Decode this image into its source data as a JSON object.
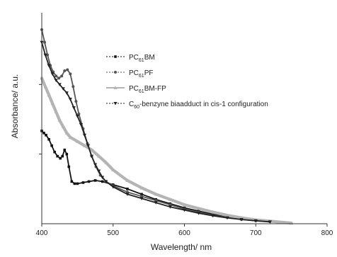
{
  "chart_data": {
    "type": "line",
    "title": "",
    "xlabel": "Wavelength/ nm",
    "ylabel": "Absorbance/ a.u.",
    "xlim": [
      400,
      800
    ],
    "ylim": [
      0,
      1
    ],
    "x_ticks": [
      400,
      500,
      600,
      700,
      800
    ],
    "y_ticks": [
      0.33,
      0.66
    ],
    "y_tick_labels_shown": false,
    "grid": false,
    "legend_position": "top-right",
    "series": [
      {
        "name_main": "PC",
        "name_sub": "61",
        "name_rest": "BM",
        "color": "#111111",
        "dash": "2,2",
        "marker": "square",
        "points": [
          [
            400,
            0.44
          ],
          [
            403,
            0.43
          ],
          [
            406,
            0.42
          ],
          [
            410,
            0.4
          ],
          [
            414,
            0.37
          ],
          [
            418,
            0.34
          ],
          [
            422,
            0.32
          ],
          [
            426,
            0.31
          ],
          [
            429,
            0.32
          ],
          [
            432,
            0.35
          ],
          [
            435,
            0.33
          ],
          [
            438,
            0.27
          ],
          [
            442,
            0.2
          ],
          [
            446,
            0.19
          ],
          [
            450,
            0.19
          ],
          [
            458,
            0.195
          ],
          [
            466,
            0.2
          ],
          [
            475,
            0.205
          ],
          [
            485,
            0.2
          ],
          [
            500,
            0.185
          ],
          [
            520,
            0.165
          ],
          [
            540,
            0.14
          ],
          [
            560,
            0.115
          ],
          [
            580,
            0.095
          ],
          [
            600,
            0.075
          ],
          [
            620,
            0.06
          ],
          [
            640,
            0.045
          ],
          [
            660,
            0.032
          ],
          [
            680,
            0.022
          ],
          [
            700,
            0.015
          ],
          [
            720,
            0.01
          ]
        ]
      },
      {
        "name_main": "PC",
        "name_sub": "61",
        "name_rest": "PF",
        "color": "#555555",
        "dash": "2,2",
        "marker": "circle",
        "points": [
          [
            400,
            0.92
          ],
          [
            404,
            0.86
          ],
          [
            408,
            0.8
          ],
          [
            412,
            0.75
          ],
          [
            416,
            0.72
          ],
          [
            420,
            0.7
          ],
          [
            424,
            0.69
          ],
          [
            428,
            0.7
          ],
          [
            432,
            0.725
          ],
          [
            436,
            0.73
          ],
          [
            440,
            0.71
          ],
          [
            444,
            0.65
          ],
          [
            448,
            0.58
          ],
          [
            452,
            0.52
          ],
          [
            458,
            0.45
          ],
          [
            464,
            0.38
          ],
          [
            470,
            0.32
          ],
          [
            476,
            0.27
          ],
          [
            482,
            0.23
          ],
          [
            490,
            0.2
          ],
          [
            500,
            0.18
          ],
          [
            520,
            0.15
          ],
          [
            540,
            0.13
          ],
          [
            560,
            0.11
          ],
          [
            580,
            0.09
          ],
          [
            600,
            0.07
          ],
          [
            620,
            0.055
          ],
          [
            640,
            0.04
          ],
          [
            660,
            0.03
          ],
          [
            680,
            0.02
          ],
          [
            700,
            0.014
          ],
          [
            720,
            0.01
          ]
        ]
      },
      {
        "name_main": "PC",
        "name_sub": "61",
        "name_rest": "BM-FP",
        "color": "#b4b4b4",
        "dash": "",
        "marker": "triangle",
        "points": [
          [
            400,
            0.69
          ],
          [
            405,
            0.65
          ],
          [
            410,
            0.61
          ],
          [
            415,
            0.57
          ],
          [
            420,
            0.53
          ],
          [
            425,
            0.49
          ],
          [
            430,
            0.46
          ],
          [
            435,
            0.43
          ],
          [
            440,
            0.41
          ],
          [
            450,
            0.39
          ],
          [
            460,
            0.37
          ],
          [
            470,
            0.35
          ],
          [
            480,
            0.32
          ],
          [
            490,
            0.29
          ],
          [
            500,
            0.255
          ],
          [
            520,
            0.205
          ],
          [
            540,
            0.17
          ],
          [
            560,
            0.14
          ],
          [
            580,
            0.115
          ],
          [
            600,
            0.09
          ],
          [
            620,
            0.072
          ],
          [
            640,
            0.055
          ],
          [
            660,
            0.04
          ],
          [
            680,
            0.028
          ],
          [
            700,
            0.018
          ],
          [
            720,
            0.012
          ],
          [
            740,
            0.006
          ],
          [
            750,
            0.003
          ]
        ]
      },
      {
        "name_main": "C",
        "name_sub": "60",
        "name_rest": "-benzyne biaadduct in cis-1 configuration",
        "color": "#222222",
        "dash": "2,2",
        "marker": "triangle-down",
        "points": [
          [
            400,
            0.86
          ],
          [
            405,
            0.8
          ],
          [
            410,
            0.75
          ],
          [
            415,
            0.71
          ],
          [
            420,
            0.68
          ],
          [
            425,
            0.66
          ],
          [
            430,
            0.64
          ],
          [
            435,
            0.62
          ],
          [
            440,
            0.59
          ],
          [
            445,
            0.55
          ],
          [
            450,
            0.51
          ],
          [
            455,
            0.47
          ],
          [
            460,
            0.42
          ],
          [
            465,
            0.37
          ],
          [
            470,
            0.32
          ],
          [
            475,
            0.28
          ],
          [
            480,
            0.25
          ],
          [
            485,
            0.22
          ],
          [
            490,
            0.2
          ],
          [
            500,
            0.175
          ],
          [
            520,
            0.14
          ],
          [
            540,
            0.12
          ],
          [
            560,
            0.1
          ],
          [
            580,
            0.08
          ],
          [
            600,
            0.065
          ],
          [
            620,
            0.05
          ],
          [
            640,
            0.038
          ],
          [
            660,
            0.028
          ],
          [
            680,
            0.02
          ],
          [
            700,
            0.014
          ],
          [
            720,
            0.009
          ]
        ]
      }
    ]
  }
}
